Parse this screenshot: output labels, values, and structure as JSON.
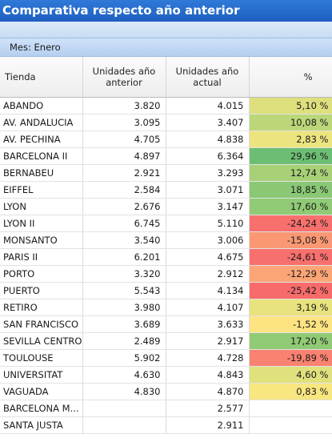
{
  "window": {
    "title": "Comparativa respecto año anterior"
  },
  "filter": {
    "label": "Mes: Enero"
  },
  "table": {
    "columns": [
      "Tienda",
      "Unidades año anterior",
      "Unidades año actual",
      "%"
    ],
    "rows": [
      {
        "tienda": "ABANDO",
        "anterior": "3.820",
        "actual": "4.015",
        "pct": "5,10 %",
        "color": "#dde07c"
      },
      {
        "tienda": "AV. ANDALUCIA",
        "anterior": "3.095",
        "actual": "3.407",
        "pct": "10,08 %",
        "color": "#bcd67a"
      },
      {
        "tienda": "AV. PECHINA",
        "anterior": "4.705",
        "actual": "4.838",
        "pct": "2,83 %",
        "color": "#ece47f"
      },
      {
        "tienda": "BARCELONA II",
        "anterior": "4.897",
        "actual": "6.364",
        "pct": "29,96 %",
        "color": "#6cbf72"
      },
      {
        "tienda": "BERNABEU",
        "anterior": "2.921",
        "actual": "3.293",
        "pct": "12,74 %",
        "color": "#a7d077"
      },
      {
        "tienda": "EIFFEL",
        "anterior": "2.584",
        "actual": "3.071",
        "pct": "18,85 %",
        "color": "#8ac875"
      },
      {
        "tienda": "LYON",
        "anterior": "2.676",
        "actual": "3.147",
        "pct": "17,60 %",
        "color": "#90ca75"
      },
      {
        "tienda": "LYON II",
        "anterior": "6.745",
        "actual": "5.110",
        "pct": "-24,24 %",
        "color": "#f8706e"
      },
      {
        "tienda": "MONSANTO",
        "anterior": "3.540",
        "actual": "3.006",
        "pct": "-15,08 %",
        "color": "#fa9874"
      },
      {
        "tienda": "PARIS II",
        "anterior": "6.201",
        "actual": "4.675",
        "pct": "-24,61 %",
        "color": "#f8706e"
      },
      {
        "tienda": "PORTO",
        "anterior": "3.320",
        "actual": "2.912",
        "pct": "-12,29 %",
        "color": "#fba577"
      },
      {
        "tienda": "PUERTO",
        "anterior": "5.543",
        "actual": "4.134",
        "pct": "-25,42 %",
        "color": "#f86b6b"
      },
      {
        "tienda": "RETIRO",
        "anterior": "3.980",
        "actual": "4.107",
        "pct": "3,19 %",
        "color": "#e8e37e"
      },
      {
        "tienda": "SAN FRANCISCO",
        "anterior": "3.689",
        "actual": "3.633",
        "pct": "-1,52 %",
        "color": "#fde382"
      },
      {
        "tienda": "SEVILLA CENTRO",
        "anterior": "2.489",
        "actual": "2.917",
        "pct": "17,20 %",
        "color": "#91ca75"
      },
      {
        "tienda": "TOULOUSE",
        "anterior": "5.902",
        "actual": "4.728",
        "pct": "-19,89 %",
        "color": "#f98271"
      },
      {
        "tienda": "UNIVERSITAT",
        "anterior": "4.630",
        "actual": "4.843",
        "pct": "4,60 %",
        "color": "#e0e17d"
      },
      {
        "tienda": "VAGUADA",
        "anterior": "4.830",
        "actual": "4.870",
        "pct": "0,83 %",
        "color": "#f8e680"
      },
      {
        "tienda": "BARCELONA M...",
        "anterior": "",
        "actual": "2.577",
        "pct": "",
        "color": ""
      },
      {
        "tienda": "SANTA JUSTA",
        "anterior": "",
        "actual": "2.911",
        "pct": "",
        "color": ""
      }
    ]
  }
}
